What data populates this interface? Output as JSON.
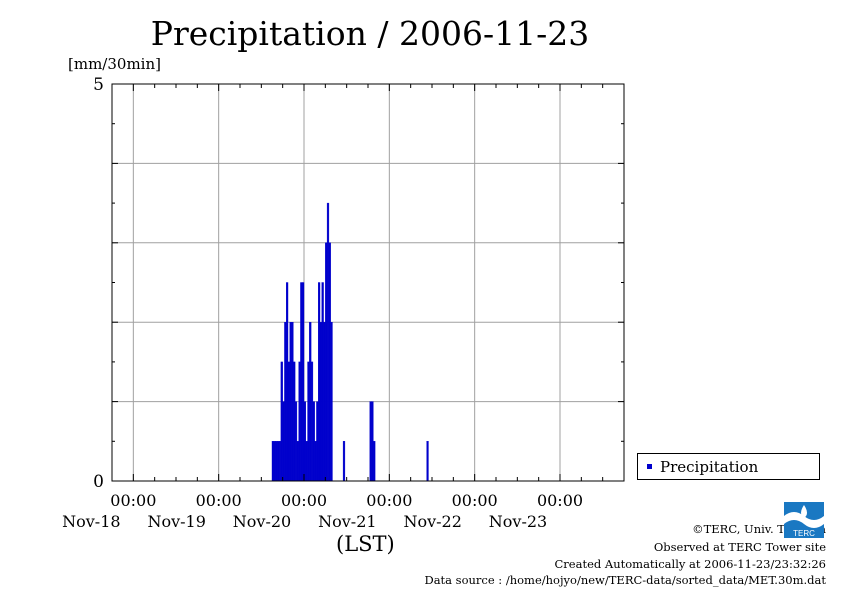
{
  "title": "Precipitation / 2006-11-23",
  "y_unit": "[mm/30min]",
  "x_caption": "(LST)",
  "legend": {
    "label": "Precipitation"
  },
  "footer": {
    "copyright": "©TERC, Univ. Tsukuba",
    "observed": "Observed at TERC Tower site",
    "created": "Created Automatically at 2006-11-23/23:32:26",
    "source": "Data source : /home/hojyo/new/TERC-data/sorted_data/MET.30m.dat"
  },
  "logo_text": "TERC",
  "colors": {
    "bar": "#0000cc",
    "grid": "#a0a0a0"
  },
  "chart_data": {
    "type": "bar",
    "title": "Precipitation / 2006-11-23",
    "ylabel": "[mm/30min]",
    "xlabel": "(LST)",
    "ylim": [
      0,
      5
    ],
    "y_tick_labels": [
      "0",
      "5"
    ],
    "xlim": [
      -0.25,
      5.75
    ],
    "x_unit": "days from 2006-11-18 00:00",
    "x_tick_labels": [
      {
        "time": "00:00",
        "date": "Nov-18"
      },
      {
        "time": "00:00",
        "date": "Nov-19"
      },
      {
        "time": "00:00",
        "date": "Nov-20"
      },
      {
        "time": "00:00",
        "date": "Nov-21"
      },
      {
        "time": "00:00",
        "date": "Nov-22"
      },
      {
        "time": "00:00",
        "date": "Nov-23"
      }
    ],
    "legend": "bottom-right outside",
    "grid": true,
    "series": [
      {
        "name": "Precipitation",
        "points": [
          [
            "2006-11-19 15:30",
            0.5
          ],
          [
            "2006-11-19 16:00",
            0.5
          ],
          [
            "2006-11-19 16:30",
            0.5
          ],
          [
            "2006-11-19 17:00",
            0.5
          ],
          [
            "2006-11-19 17:30",
            0.5
          ],
          [
            "2006-11-19 18:00",
            1.5
          ],
          [
            "2006-11-19 18:30",
            1.0
          ],
          [
            "2006-11-19 19:00",
            2.0
          ],
          [
            "2006-11-19 19:30",
            2.5
          ],
          [
            "2006-11-19 20:00",
            1.5
          ],
          [
            "2006-11-19 20:30",
            2.0
          ],
          [
            "2006-11-19 21:00",
            2.0
          ],
          [
            "2006-11-19 21:30",
            1.5
          ],
          [
            "2006-11-19 22:00",
            1.0
          ],
          [
            "2006-11-19 22:30",
            0.5
          ],
          [
            "2006-11-19 23:00",
            1.5
          ],
          [
            "2006-11-19 23:30",
            2.5
          ],
          [
            "2006-11-20 00:00",
            2.5
          ],
          [
            "2006-11-20 00:30",
            1.0
          ],
          [
            "2006-11-20 01:00",
            0.5
          ],
          [
            "2006-11-20 01:30",
            1.5
          ],
          [
            "2006-11-20 02:00",
            2.0
          ],
          [
            "2006-11-20 02:30",
            1.5
          ],
          [
            "2006-11-20 03:00",
            1.0
          ],
          [
            "2006-11-20 03:30",
            0.5
          ],
          [
            "2006-11-20 04:00",
            1.0
          ],
          [
            "2006-11-20 04:30",
            2.5
          ],
          [
            "2006-11-20 05:00",
            2.0
          ],
          [
            "2006-11-20 05:30",
            2.5
          ],
          [
            "2006-11-20 06:00",
            2.0
          ],
          [
            "2006-11-20 06:30",
            3.0
          ],
          [
            "2006-11-20 07:00",
            3.5
          ],
          [
            "2006-11-20 07:30",
            3.0
          ],
          [
            "2006-11-20 08:00",
            2.0
          ],
          [
            "2006-11-20 11:30",
            0.5
          ],
          [
            "2006-11-20 19:00",
            1.0
          ],
          [
            "2006-11-20 19:30",
            1.0
          ],
          [
            "2006-11-20 20:00",
            0.5
          ],
          [
            "2006-11-21 11:00",
            0.5
          ]
        ]
      }
    ]
  }
}
